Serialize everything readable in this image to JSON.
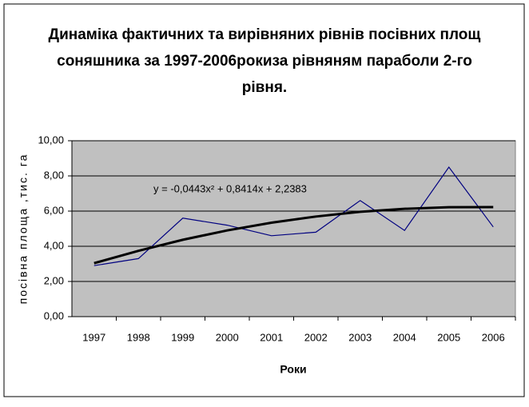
{
  "chart_data": {
    "type": "line",
    "title_lines": [
      "Динаміка фактичних та вирівняних рівнів посівних площ",
      "соняшника за 1997-2006рокиза рівняням параболи 2-го",
      "рівня."
    ],
    "annotation": "y = -0,0443x² + 0,8414x + 2,2383",
    "y_label": "посівна площа ,тис. га",
    "x_label": "Роки",
    "categories": [
      "1997",
      "1998",
      "1999",
      "2000",
      "2001",
      "2002",
      "2003",
      "2004",
      "2005",
      "2006"
    ],
    "series": [
      {
        "color": "#000080",
        "values": [
          2.9,
          3.3,
          5.6,
          5.2,
          4.6,
          4.8,
          6.6,
          4.9,
          8.5,
          5.1
        ]
      },
      {
        "color": "#000000",
        "values": [
          3.04,
          3.74,
          4.37,
          4.9,
          5.34,
          5.69,
          5.96,
          6.13,
          6.22,
          6.23
        ]
      }
    ],
    "ylim": [
      0,
      10
    ],
    "yticks": [
      {
        "value": 0,
        "label": "0,00"
      },
      {
        "value": 2,
        "label": "2,00"
      },
      {
        "value": 4,
        "label": "4,00"
      },
      {
        "value": 6,
        "label": "6,00"
      },
      {
        "value": 8,
        "label": "8,00"
      },
      {
        "value": 10,
        "label": "10,00"
      }
    ],
    "grid": true,
    "plot_color": "#c0c0c0"
  }
}
